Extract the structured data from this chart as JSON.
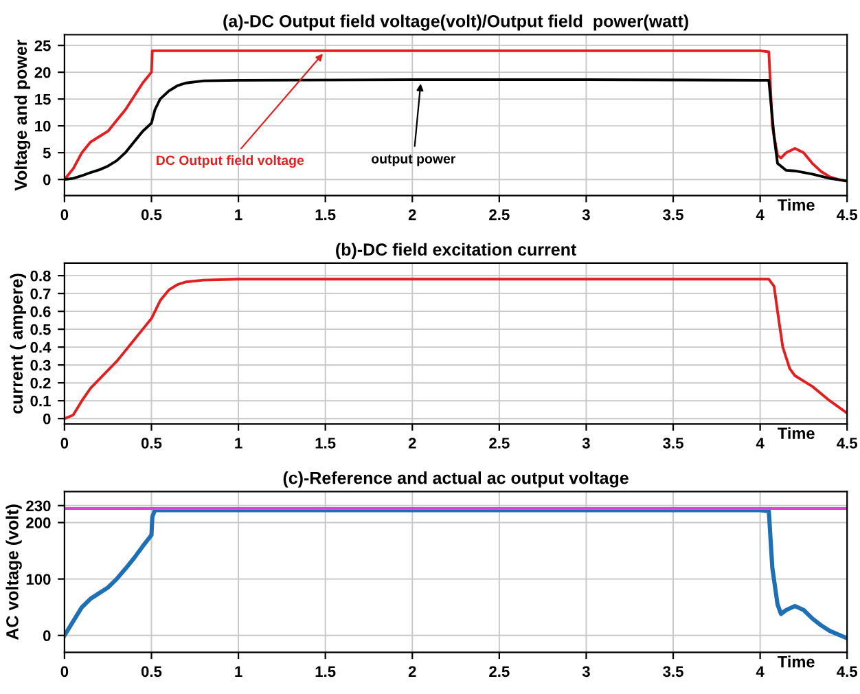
{
  "chart_data": [
    {
      "type": "line",
      "title": "(a)-DC Output field voltage(volt)/Output field  power(watt)",
      "xlabel": "Time",
      "ylabel": "Voltage and power",
      "xlim": [
        0,
        4.5
      ],
      "xticks": [
        0,
        0.5,
        1,
        1.5,
        2,
        2.5,
        3,
        3.5,
        4,
        4.5
      ],
      "ylim": [
        -3,
        27
      ],
      "yticks": [
        0,
        5,
        10,
        15,
        20,
        25
      ],
      "grid": true,
      "series": [
        {
          "color": "#e02020",
          "x": [
            0,
            0.05,
            0.1,
            0.15,
            0.2,
            0.25,
            0.3,
            0.35,
            0.4,
            0.45,
            0.5,
            0.505,
            0.52,
            1,
            2,
            3,
            4,
            4.05,
            4.07,
            4.1,
            4.12,
            4.15,
            4.2,
            4.25,
            4.3,
            4.35,
            4.4,
            4.45,
            4.5
          ],
          "values": [
            0,
            2,
            5,
            7,
            8,
            9,
            11,
            13,
            15.5,
            18,
            20,
            24,
            24,
            24,
            24,
            24,
            24,
            23.8,
            10,
            4.5,
            4,
            5,
            5.8,
            5,
            3,
            1.5,
            0.5,
            0,
            -0.3
          ]
        },
        {
          "color": "#000000",
          "x": [
            0,
            0.05,
            0.1,
            0.15,
            0.2,
            0.25,
            0.3,
            0.35,
            0.4,
            0.45,
            0.5,
            0.52,
            0.55,
            0.6,
            0.65,
            0.7,
            0.8,
            1,
            2,
            3,
            4,
            4.05,
            4.08,
            4.1,
            4.15,
            4.2,
            4.3,
            4.4,
            4.5
          ],
          "values": [
            0,
            0.2,
            0.7,
            1.3,
            1.8,
            2.5,
            3.5,
            5,
            7,
            9,
            10.5,
            13,
            15,
            16.5,
            17.5,
            18,
            18.4,
            18.5,
            18.6,
            18.6,
            18.5,
            18.5,
            8,
            3,
            1.7,
            1.6,
            1,
            0.2,
            -0.3
          ]
        }
      ],
      "annotations": [
        {
          "text": "DC Output field voltage",
          "x": 1.5,
          "y": 24
        },
        {
          "text": "output power",
          "x": 2.05,
          "y": 18.6
        }
      ]
    },
    {
      "type": "line",
      "title": "(b)-DC field excitation current",
      "xlabel": "Time",
      "ylabel": "current ( ampere)",
      "xlim": [
        0,
        4.5
      ],
      "xticks": [
        0,
        0.5,
        1,
        1.5,
        2,
        2.5,
        3,
        3.5,
        4,
        4.5
      ],
      "ylim": [
        -0.03,
        0.87
      ],
      "yticks": [
        0,
        0.1,
        0.2,
        0.3,
        0.4,
        0.5,
        0.6,
        0.7,
        0.8
      ],
      "grid": true,
      "series": [
        {
          "color": "#e02020",
          "x": [
            0,
            0.05,
            0.1,
            0.15,
            0.2,
            0.25,
            0.3,
            0.35,
            0.4,
            0.45,
            0.5,
            0.55,
            0.6,
            0.65,
            0.7,
            0.8,
            1,
            2,
            3,
            4,
            4.05,
            4.08,
            4.1,
            4.13,
            4.17,
            4.2,
            4.3,
            4.4,
            4.5
          ],
          "values": [
            0,
            0.02,
            0.1,
            0.17,
            0.22,
            0.27,
            0.32,
            0.38,
            0.44,
            0.5,
            0.56,
            0.66,
            0.72,
            0.75,
            0.765,
            0.775,
            0.78,
            0.78,
            0.78,
            0.78,
            0.78,
            0.74,
            0.6,
            0.4,
            0.28,
            0.24,
            0.18,
            0.1,
            0.03
          ]
        }
      ]
    },
    {
      "type": "line",
      "title": "(c)-Reference and actual ac output voltage",
      "xlabel": "Time",
      "ylabel": "AC voltage (volt)",
      "xlim": [
        0,
        4.5
      ],
      "xticks": [
        0,
        0.5,
        1,
        1.5,
        2,
        2.5,
        3,
        3.5,
        4,
        4.5
      ],
      "ylim": [
        -30,
        255
      ],
      "yticks": [
        0,
        100,
        200,
        230
      ],
      "grid": true,
      "series": [
        {
          "color": "#1f6fb4",
          "x": [
            0,
            0.05,
            0.1,
            0.15,
            0.2,
            0.25,
            0.3,
            0.35,
            0.4,
            0.45,
            0.5,
            0.505,
            0.52,
            1,
            2,
            3,
            4,
            4.05,
            4.07,
            4.1,
            4.12,
            4.15,
            4.2,
            4.25,
            4.3,
            4.35,
            4.4,
            4.5
          ],
          "values": [
            0,
            25,
            50,
            65,
            75,
            85,
            100,
            118,
            137,
            158,
            178,
            210,
            222,
            222,
            222,
            222,
            222,
            220,
            120,
            55,
            38,
            45,
            52,
            45,
            30,
            18,
            8,
            -5
          ]
        },
        {
          "color": "#e040e0",
          "x": [
            0,
            4.5
          ],
          "values": [
            225,
            225
          ]
        }
      ]
    }
  ]
}
